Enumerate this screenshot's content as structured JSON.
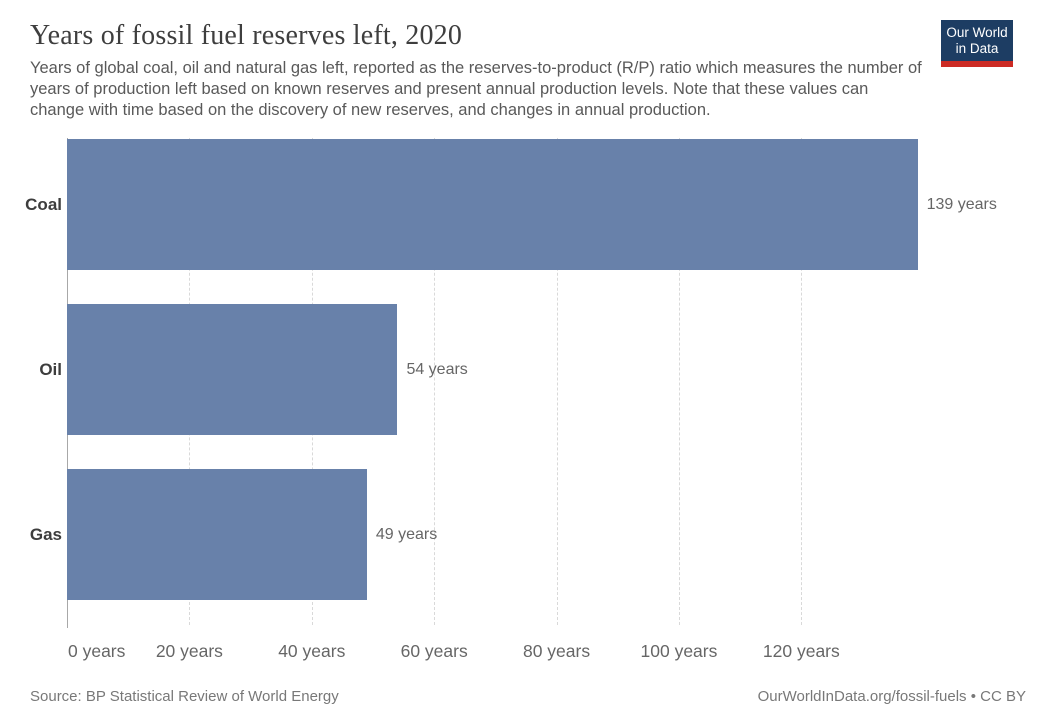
{
  "header": {
    "title": "Years of fossil fuel reserves left, 2020",
    "subtitle": "Years of global coal, oil and natural gas left, reported as the reserves-to-product (R/P) ratio which measures the number of years of production left based on known reserves and present annual production levels. Note that these values can change with time based on the discovery of new reserves, and changes in annual production.",
    "logo": {
      "line1": "Our World",
      "line2": "in Data"
    }
  },
  "chart_data": {
    "type": "bar",
    "orientation": "horizontal",
    "title": "Years of fossil fuel reserves left, 2020",
    "categories": [
      "Coal",
      "Oil",
      "Gas"
    ],
    "values": [
      139,
      54,
      49
    ],
    "value_labels": [
      "139 years",
      "54 years",
      "49 years"
    ],
    "x_ticks": [
      0,
      20,
      40,
      60,
      80,
      100,
      120
    ],
    "x_tick_suffix": " years",
    "xlabel": "",
    "ylabel": "",
    "xlim": [
      0,
      159
    ],
    "grid": true,
    "gridline_style": "dashed",
    "bar_color": "#6881aa",
    "legend": "none"
  },
  "colors": {
    "bar": "#6881aa",
    "logo_bg": "#1d3d63",
    "logo_stripe": "#cc2b24",
    "text_muted": "#666666"
  },
  "footer": {
    "source": "Source: BP Statistical Review of World Energy",
    "credit": "OurWorldInData.org/fossil-fuels • CC BY"
  }
}
